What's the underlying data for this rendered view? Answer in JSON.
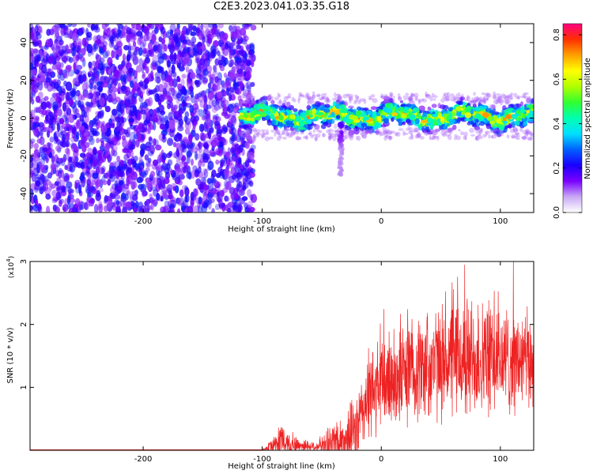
{
  "title": "C2E3.2023.041.03.35.G18",
  "colors": {
    "scatter_purple": "#6a00e8",
    "scatter_light": "#c9b0f5",
    "snr_line": "#ee2222",
    "axis": "#000000"
  },
  "chart_data": [
    {
      "type": "heatmap",
      "name": "spectrogram",
      "xlabel": "Height of straight line (km)",
      "ylabel": "Frequency (Hz)",
      "xlim": [
        -295,
        128
      ],
      "ylim": [
        -50,
        50
      ],
      "x_ticks": [
        -200,
        -100,
        0,
        100
      ],
      "x_tick_labels": [
        "-200",
        "-100",
        "0",
        "100"
      ],
      "y_ticks": [
        -40,
        -20,
        0,
        20,
        40
      ],
      "y_tick_labels": [
        "-40",
        "-20",
        "0",
        "20",
        "40"
      ],
      "noise_region_x": [
        -295,
        -107
      ],
      "signal_band": {
        "x_range": [
          -118,
          128
        ],
        "center_freq": 1,
        "half_width": 7
      },
      "dip_feature": {
        "x": -34,
        "min_freq": -30
      },
      "colorbar": {
        "label": "Normalized spectral amplitude",
        "range": [
          0,
          0.85
        ],
        "ticks": [
          0.0,
          0.2,
          0.4,
          0.6,
          0.8
        ],
        "tick_labels": [
          "0.0",
          "0.2",
          "0.4",
          "0.6",
          "0.8"
        ],
        "colormap": [
          "#ffffff",
          "#c8a8f4",
          "#7a00ff",
          "#1a00ff",
          "#0060ff",
          "#00e0ff",
          "#00ffb0",
          "#30ff30",
          "#b0ff00",
          "#ffff00",
          "#ffa000",
          "#ff3000",
          "#ff0080"
        ]
      }
    },
    {
      "type": "line",
      "name": "snr",
      "xlabel": "Height of straight line (km)",
      "ylabel": "SNR (10 * v/v)",
      "y_multiplier_label": "(x10",
      "y_multiplier_exp": "4",
      "y_multiplier_close": ")",
      "xlim": [
        -295,
        128
      ],
      "ylim": [
        0,
        3
      ],
      "x_ticks": [
        -200,
        -100,
        0,
        100
      ],
      "x_tick_labels": [
        "-200",
        "-100",
        "0",
        "100"
      ],
      "y_ticks": [
        1,
        2,
        3
      ],
      "y_tick_labels": [
        "1",
        "2",
        "3"
      ],
      "envelope": {
        "x": [
          -295,
          -100,
          -96,
          -90,
          -85,
          -80,
          -75,
          -70,
          -62,
          -55,
          -48,
          -42,
          -36,
          -33,
          -30,
          -25,
          -20,
          -17,
          -15,
          -10,
          -5,
          0,
          10,
          20,
          30,
          40,
          50,
          60,
          70,
          80,
          90,
          100,
          110,
          120,
          128
        ],
        "baseline": [
          0.01,
          0.01,
          0.03,
          0.08,
          0.14,
          0.12,
          0.09,
          0.08,
          0.07,
          0.06,
          0.08,
          0.12,
          0.15,
          0.13,
          0.18,
          0.24,
          0.34,
          0.5,
          0.7,
          0.85,
          0.95,
          1.05,
          1.15,
          1.25,
          1.3,
          1.35,
          1.4,
          1.45,
          1.45,
          1.45,
          1.45,
          1.45,
          1.42,
          1.4,
          1.4
        ],
        "spread": [
          0.0,
          0.0,
          0.05,
          0.2,
          0.35,
          0.3,
          0.2,
          0.15,
          0.12,
          0.12,
          0.2,
          0.4,
          0.55,
          0.45,
          0.5,
          0.6,
          0.75,
          0.75,
          0.75,
          0.85,
          0.9,
          0.95,
          1.0,
          1.0,
          1.0,
          1.05,
          1.05,
          1.1,
          1.2,
          1.1,
          1.1,
          1.05,
          1.0,
          0.95,
          0.95
        ]
      }
    }
  ]
}
